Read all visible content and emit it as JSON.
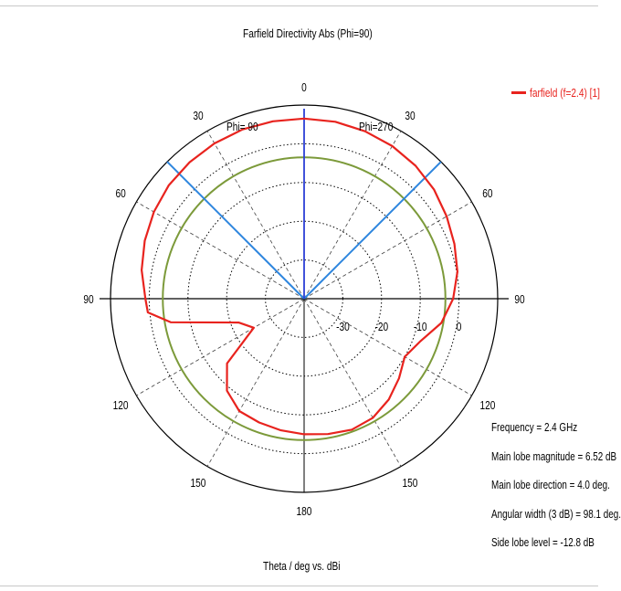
{
  "chart_data": {
    "type": "polar",
    "title": "Farfield Directivity Abs (Phi=90)",
    "xlabel": "Theta / deg vs. dBi",
    "angle_ticks": [
      {
        "angle": 0,
        "label": "0"
      },
      {
        "angle": 30,
        "label": "30"
      },
      {
        "angle": -30,
        "label": "30"
      },
      {
        "angle": 60,
        "label": "60"
      },
      {
        "angle": -60,
        "label": "60"
      },
      {
        "angle": 90,
        "label": "90"
      },
      {
        "angle": -90,
        "label": "90"
      },
      {
        "angle": 120,
        "label": "120"
      },
      {
        "angle": -120,
        "label": "120"
      },
      {
        "angle": 150,
        "label": "150"
      },
      {
        "angle": -150,
        "label": "150"
      },
      {
        "angle": 180,
        "label": "180"
      }
    ],
    "side_labels": {
      "left": "Phi= 90",
      "right": "Phi=270"
    },
    "radial_range": [
      -40,
      10
    ],
    "radial_ticks": [
      {
        "value": -30,
        "label": "-30"
      },
      {
        "value": -20,
        "label": "-20"
      },
      {
        "value": -10,
        "label": "-10"
      },
      {
        "value": 0,
        "label": "0"
      }
    ],
    "series": [
      {
        "name": "farfield (f=2.4) [1]",
        "color": "#e8231e",
        "theta": [
          0,
          10,
          20,
          30,
          40,
          50,
          60,
          70,
          80,
          90,
          100,
          110,
          120,
          130,
          140,
          150,
          160,
          170,
          180,
          -170,
          -160,
          -150,
          -140,
          -130,
          -120,
          -110,
          -100,
          -95,
          -90,
          -80,
          -70,
          -60,
          -50,
          -40,
          -30,
          -20,
          -10
        ],
        "values": [
          6.5,
          6.4,
          6.0,
          5.5,
          4.8,
          3.8,
          2.5,
          1.3,
          0.2,
          -1.5,
          -4,
          -8,
          -10,
          -8,
          -6,
          -4.5,
          -4,
          -4.5,
          -5,
          -5.5,
          -6,
          -6.5,
          -9,
          -14,
          -25,
          -22,
          -5,
          0.5,
          1.0,
          2.6,
          3.8,
          4.8,
          5.6,
          6.0,
          6.3,
          6.5,
          6.5
        ]
      },
      {
        "name": "",
        "color": "#7c9a3a",
        "constant": -3.5
      }
    ],
    "beamwidth_lines": {
      "angles": [
        -45,
        45
      ],
      "color": "#2e86de"
    },
    "main_lobe_line": {
      "angle": 4,
      "color": "#2c3fd6"
    }
  },
  "info": {
    "frequency": "Frequency = 2.4 GHz",
    "main_lobe_magnitude": "Main lobe magnitude =    6.52 dB",
    "main_lobe_direction": "Main lobe direction =   4.0 deg.",
    "angular_width": "Angular width (3 dB) =   98.1 deg.",
    "side_lobe_level": "Side lobe level =  -12.8 dB"
  }
}
